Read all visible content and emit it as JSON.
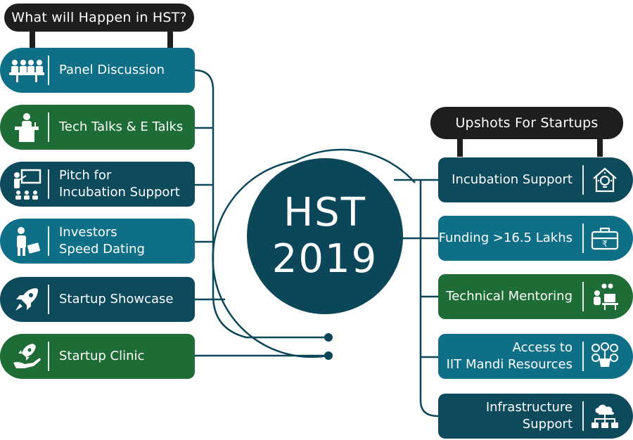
{
  "left_header": "What will Happen in HST?",
  "right_header": "Upshots For Startups",
  "hub": {
    "line1": "HST",
    "line2": "2019"
  },
  "left_items": [
    {
      "line1": "Panel Discussion",
      "line2": "",
      "icon": "panel-discussion-icon",
      "color": "#0e6f86"
    },
    {
      "line1": "Tech Talks & E Talks",
      "line2": "",
      "icon": "speaker-podium-icon",
      "color": "#1e6d36"
    },
    {
      "line1": "Pitch for",
      "line2": "Incubation Support",
      "icon": "presentation-board-icon",
      "color": "#0d4a5c"
    },
    {
      "line1": "Investors",
      "line2": "Speed Dating",
      "icon": "investor-briefcase-icon",
      "color": "#0e6f86"
    },
    {
      "line1": "Startup Showcase",
      "line2": "",
      "icon": "rocket-icon",
      "color": "#0d4a5c"
    },
    {
      "line1": "Startup Clinic",
      "line2": "",
      "icon": "rocket-hand-icon",
      "color": "#1e6d36"
    }
  ],
  "right_items": [
    {
      "line1": "Incubation Support",
      "line2": "",
      "icon": "house-bulb-icon",
      "color": "#0d4a5c"
    },
    {
      "line1": "Funding >16.5 Lakhs",
      "line2": "",
      "icon": "rupee-briefcase-icon",
      "color": "#0e6f86"
    },
    {
      "line1": "Technical Mentoring",
      "line2": "",
      "icon": "mentor-desk-icon",
      "color": "#1e6d36"
    },
    {
      "line1": "Access to",
      "line2": "IIT Mandi Resources",
      "icon": "resources-network-icon",
      "color": "#0e6f86"
    },
    {
      "line1": "Infrastructure Support",
      "line2": "",
      "icon": "cloud-network-icon",
      "color": "#0d4a5c"
    }
  ]
}
